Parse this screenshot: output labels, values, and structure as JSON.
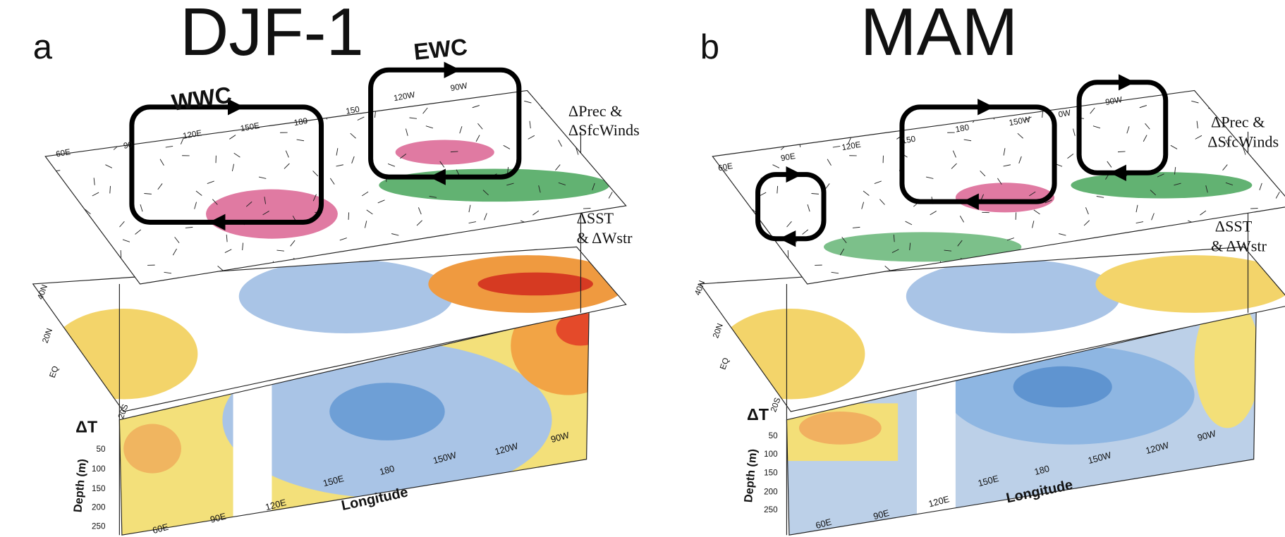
{
  "panels": [
    {
      "letter": "a",
      "title": "DJF-1",
      "circulations": [
        "WWC",
        "EWC"
      ],
      "layer_labels": {
        "prec": [
          "ΔPrec &",
          "ΔSfcWinds"
        ],
        "sst": [
          "ΔSST",
          "& ΔWstr"
        ]
      },
      "lat_ticks": [
        "40N",
        "20N",
        "EQ",
        "20S"
      ],
      "map_lon_ticks": [
        "60E",
        "90",
        "120E",
        "150E",
        "180",
        "150",
        "120W",
        "90W"
      ],
      "section": {
        "label": "ΔT",
        "ylabel": "Depth (m)",
        "xlabel": "Longitude",
        "depth_ticks": [
          "50",
          "100",
          "150",
          "200",
          "250"
        ],
        "lon_ticks": [
          "60E",
          "90E",
          "120E",
          "150E",
          "180",
          "150W",
          "120W",
          "90W"
        ]
      }
    },
    {
      "letter": "b",
      "title": "MAM",
      "layer_labels": {
        "prec": [
          "ΔPrec &",
          "ΔSfcWinds"
        ],
        "sst": [
          "ΔSST",
          "& ΔWstr"
        ]
      },
      "lat_ticks": [
        "40N",
        "20N",
        "EQ",
        "20S"
      ],
      "map_lon_ticks": [
        "60E",
        "90E",
        "120E",
        "150",
        "180",
        "150W",
        "0W",
        "90W"
      ],
      "section": {
        "label": "ΔT",
        "ylabel": "Depth (m)",
        "xlabel": "Longitude",
        "depth_ticks": [
          "50",
          "100",
          "150",
          "200",
          "250"
        ],
        "lon_ticks": [
          "60E",
          "90E",
          "120E",
          "150E",
          "180",
          "150W",
          "120W",
          "90W"
        ]
      }
    }
  ]
}
